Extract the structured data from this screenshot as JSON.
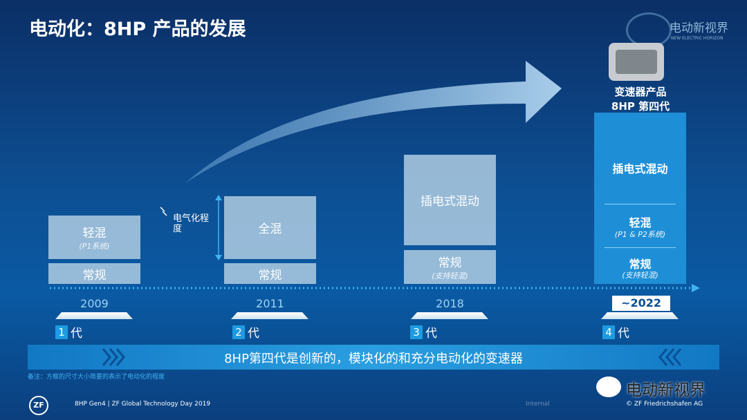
{
  "title": "电动化：8HP 产品的发展",
  "logo": {
    "name": "电动新视界",
    "tagline": "NEW ELECTRIC HORIZON"
  },
  "axis_label": "电气化程度",
  "product": {
    "line1": "变速器产品",
    "line2": "8HP 第四代"
  },
  "generations": [
    {
      "year": "2009",
      "number": "1",
      "suffix": "代",
      "blocks": [
        {
          "label": "轻混",
          "sub": "(P1系统)"
        },
        {
          "label": "常规"
        }
      ]
    },
    {
      "year": "2011",
      "number": "2",
      "suffix": "代",
      "blocks": [
        {
          "label": "全混"
        },
        {
          "label": "常规"
        }
      ]
    },
    {
      "year": "2018",
      "number": "3",
      "suffix": "代",
      "blocks": [
        {
          "label": "插电式混动"
        },
        {
          "label": "常规",
          "sub": "(支持轻混)"
        }
      ]
    },
    {
      "year": "~2022",
      "number": "4",
      "suffix": "代",
      "blocks": [
        {
          "label": "插电式混动"
        },
        {
          "label": "轻混",
          "sub": "(P1 & P2系统)"
        },
        {
          "label": "常规",
          "sub": "(支持轻混)"
        }
      ]
    }
  ],
  "banner": "8HP第四代是创新的，模块化的和充分电动化的变速器",
  "note": "备注：方框的尺寸大小简要的表示了电动化的程度",
  "footer": {
    "logo": "ZF",
    "left": "8HP Gen4 | ZF Global Technology Day 2019",
    "center": "Internal",
    "right": "© ZF Friedrichshafen AG"
  },
  "watermark": "电动新视界"
}
